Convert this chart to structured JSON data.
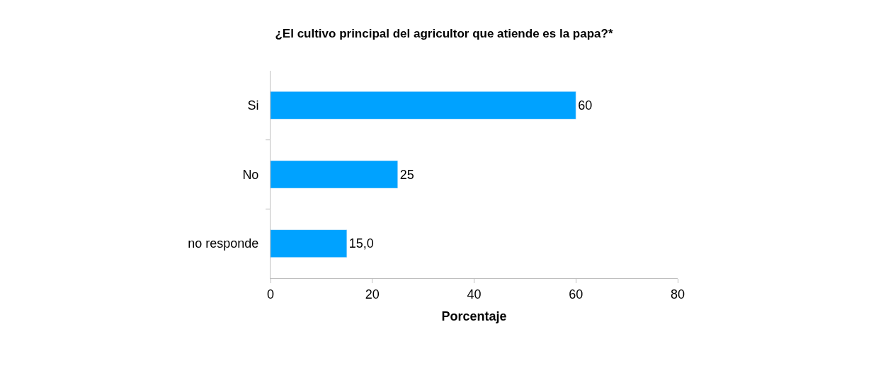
{
  "chart_data": {
    "type": "bar",
    "orientation": "horizontal",
    "title": "¿El cultivo principal del agricultor que atiende es la papa?*",
    "xlabel": "Porcentaje",
    "categories": [
      "Si",
      "No",
      "no responde"
    ],
    "values": [
      60,
      25,
      15.0
    ],
    "value_labels": [
      "60",
      "25",
      "15,0"
    ],
    "color": "#00a2ff",
    "xlim": [
      0,
      80
    ],
    "xticks": [
      0,
      20,
      40,
      60,
      80
    ],
    "grid": false,
    "legend": false
  }
}
